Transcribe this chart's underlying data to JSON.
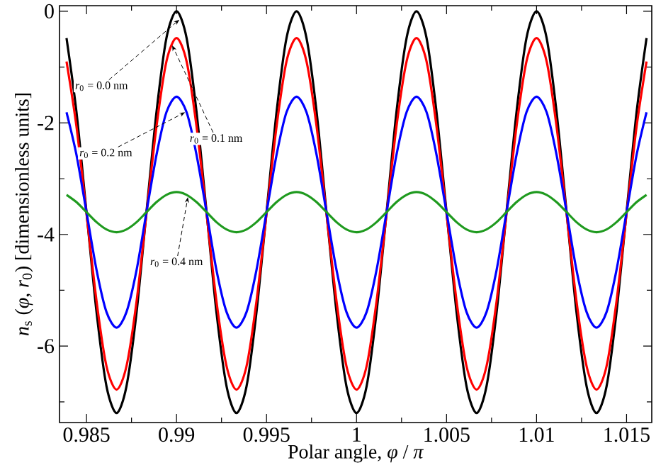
{
  "chart_data": {
    "type": "line",
    "xlabel": "Polar angle, *φ* / *π*",
    "ylabel": "*n*$_{s}$ (*φ*, *r*$_{0}$) [dimensionless units]",
    "x": [
      0.98389,
      0.98444,
      0.985,
      0.98556,
      0.98611,
      0.98667,
      0.98722,
      0.98778,
      0.98833,
      0.98889,
      0.98944,
      0.99,
      0.99056,
      0.99111,
      0.99167,
      0.99222,
      0.99278,
      0.99333,
      0.99389,
      0.99444,
      0.995,
      0.99556,
      0.99611,
      0.99667,
      0.99722,
      0.99778,
      0.99833,
      0.99889,
      0.99944,
      1.0,
      1.00056,
      1.00111,
      1.00167,
      1.00222,
      1.00278,
      1.00333,
      1.00389,
      1.00444,
      1.005,
      1.00556,
      1.00611,
      1.00667,
      1.00722,
      1.00778,
      1.00833,
      1.00889,
      1.00944,
      1.01,
      1.01056,
      1.01111,
      1.01167,
      1.01222,
      1.01278,
      1.01333,
      1.01389,
      1.01444,
      1.015,
      1.01556,
      1.01611
    ],
    "series": [
      {
        "color": "#000000",
        "values": [
          -0.48,
          -1.8,
          -3.6,
          -5.4,
          -6.72,
          -7.2,
          -6.72,
          -5.4,
          -3.6,
          -1.8,
          -0.48,
          0,
          -0.48,
          -1.8,
          -3.6,
          -5.4,
          -6.72,
          -7.2,
          -6.72,
          -5.4,
          -3.6,
          -1.8,
          -0.48,
          0,
          -0.48,
          -1.8,
          -3.6,
          -5.4,
          -6.72,
          -7.2,
          -6.72,
          -5.4,
          -3.6,
          -1.8,
          -0.48,
          0,
          -0.48,
          -1.8,
          -3.6,
          -5.4,
          -6.72,
          -7.2,
          -6.72,
          -5.4,
          -3.6,
          -1.8,
          -0.48,
          0,
          -0.48,
          -1.8,
          -3.6,
          -5.4,
          -6.72,
          -7.2,
          -6.72,
          -5.4,
          -3.6,
          -1.8,
          -0.48
        ]
      },
      {
        "color": "#ff0000",
        "values": [
          -0.9,
          -2.06,
          -3.63,
          -5.2,
          -6.36,
          -6.78,
          -6.36,
          -5.2,
          -3.63,
          -2.06,
          -0.9,
          -0.48,
          -0.9,
          -2.06,
          -3.63,
          -5.2,
          -6.36,
          -6.78,
          -6.36,
          -5.2,
          -3.63,
          -2.06,
          -0.9,
          -0.48,
          -0.9,
          -2.06,
          -3.63,
          -5.2,
          -6.36,
          -6.78,
          -6.36,
          -5.2,
          -3.63,
          -2.06,
          -0.9,
          -0.48,
          -0.9,
          -2.06,
          -3.63,
          -5.2,
          -6.36,
          -6.78,
          -6.36,
          -5.2,
          -3.63,
          -2.06,
          -0.9,
          -0.48,
          -0.9,
          -2.06,
          -3.63,
          -5.2,
          -6.36,
          -6.78,
          -6.36,
          -5.2,
          -3.63,
          -2.06,
          -0.9
        ]
      },
      {
        "color": "#0000ff",
        "values": [
          -1.81,
          -2.57,
          -3.6,
          -4.64,
          -5.39,
          -5.67,
          -5.39,
          -4.64,
          -3.6,
          -2.57,
          -1.81,
          -1.53,
          -1.81,
          -2.57,
          -3.6,
          -4.64,
          -5.39,
          -5.67,
          -5.39,
          -4.64,
          -3.6,
          -2.57,
          -1.81,
          -1.53,
          -1.81,
          -2.57,
          -3.6,
          -4.64,
          -5.39,
          -5.67,
          -5.39,
          -4.64,
          -3.6,
          -2.57,
          -1.81,
          -1.53,
          -1.81,
          -2.57,
          -3.6,
          -4.64,
          -5.39,
          -5.67,
          -5.39,
          -4.64,
          -3.6,
          -2.57,
          -1.81,
          -1.53,
          -1.81,
          -2.57,
          -3.6,
          -4.64,
          -5.39,
          -5.67,
          -5.39,
          -4.64,
          -3.6,
          -2.57,
          -1.81
        ]
      },
      {
        "color": "#1f9a1f",
        "values": [
          -3.29,
          -3.42,
          -3.6,
          -3.78,
          -3.91,
          -3.96,
          -3.91,
          -3.78,
          -3.6,
          -3.42,
          -3.29,
          -3.24,
          -3.29,
          -3.42,
          -3.6,
          -3.78,
          -3.91,
          -3.96,
          -3.91,
          -3.78,
          -3.6,
          -3.42,
          -3.29,
          -3.24,
          -3.29,
          -3.42,
          -3.6,
          -3.78,
          -3.91,
          -3.96,
          -3.91,
          -3.78,
          -3.6,
          -3.42,
          -3.29,
          -3.24,
          -3.29,
          -3.42,
          -3.6,
          -3.78,
          -3.91,
          -3.96,
          -3.91,
          -3.78,
          -3.6,
          -3.42,
          -3.29,
          -3.24,
          -3.29,
          -3.42,
          -3.6,
          -3.78,
          -3.91,
          -3.96,
          -3.91,
          -3.78,
          -3.6,
          -3.42,
          -3.29
        ]
      }
    ],
    "annotations": [
      {
        "text": "*r*$_{0}$ = 0.0 nm",
        "x": 0.99016,
        "y": -0.15
      },
      {
        "text": "*r*$_{0}$ = 0.1 nm",
        "x": 0.98976,
        "y": -0.61
      },
      {
        "text": "*r*$_{0}$ = 0.2 nm",
        "x": 0.99048,
        "y": -1.81
      },
      {
        "text": "*r*$_{0}$ = 0.4 nm",
        "x": 0.99063,
        "y": -3.33
      }
    ],
    "xlim": [
      0.9835,
      1.0164
    ],
    "ylim": [
      -7.37,
      0.1
    ],
    "xticks": [
      0.985,
      {
        "value": 0.9875,
        "label": null
      },
      0.99,
      {
        "value": 0.9925,
        "label": null
      },
      0.995,
      {
        "value": 0.9975,
        "label": null
      },
      1,
      {
        "value": 1.0025,
        "label": null
      },
      1.005,
      {
        "value": 1.0075,
        "label": null
      },
      1.01,
      {
        "value": 1.0125,
        "label": null
      },
      1.015
    ],
    "yticks": [
      {
        "value": -7,
        "label": null
      },
      -6,
      {
        "value": -5,
        "label": null
      },
      -4,
      {
        "value": -3,
        "label": null
      },
      -2,
      {
        "value": -1,
        "label": null
      },
      0
    ]
  }
}
